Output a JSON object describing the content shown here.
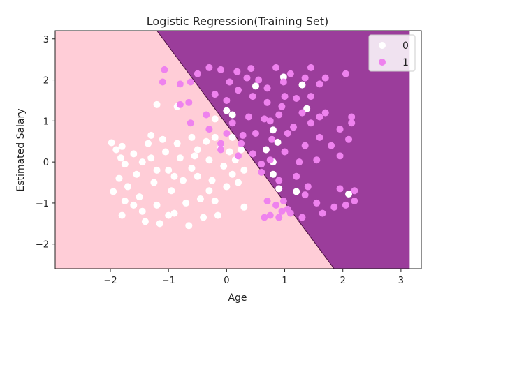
{
  "chart_data": {
    "type": "scatter",
    "title": "Logistic Regression(Training Set)",
    "xlabel": "Age",
    "ylabel": "Estimated Salary",
    "xlim": [
      -2.95,
      3.35
    ],
    "ylim": [
      -2.6,
      3.2
    ],
    "x_ticks": [
      -2,
      -1,
      0,
      1,
      2,
      3
    ],
    "y_ticks": [
      -2,
      -1,
      0,
      1,
      2,
      3
    ],
    "x_tick_labels": [
      "−2",
      "−1",
      "0",
      "1",
      "2",
      "3"
    ],
    "y_tick_labels": [
      "−2",
      "−1",
      "0",
      "1",
      "2",
      "3"
    ],
    "grid": false,
    "legend_placement": "top-right",
    "decision_regions": {
      "colors": {
        "0": "#ffcdd7",
        "1": "#9b3d9b"
      },
      "boundary_line": [
        [
          -1.2,
          3.2
        ],
        [
          1.85,
          -2.6
        ]
      ],
      "colored_x_range": [
        -2.95,
        3.15
      ]
    },
    "series": [
      {
        "name": "0",
        "color": "#ffffff",
        "points": [
          [
            -1.98,
            0.47
          ],
          [
            -1.9,
            0.3
          ],
          [
            -1.82,
            0.1
          ],
          [
            -1.8,
            0.38
          ],
          [
            -1.75,
            -0.05
          ],
          [
            -1.85,
            -0.4
          ],
          [
            -1.95,
            -0.72
          ],
          [
            -1.7,
            -0.6
          ],
          [
            -1.75,
            -0.95
          ],
          [
            -1.8,
            -1.3
          ],
          [
            -1.6,
            0.2
          ],
          [
            -1.55,
            -0.3
          ],
          [
            -1.5,
            -0.85
          ],
          [
            -1.45,
            -1.2
          ],
          [
            -1.4,
            -1.45
          ],
          [
            -1.35,
            0.45
          ],
          [
            -1.3,
            0.1
          ],
          [
            -1.25,
            -0.5
          ],
          [
            -1.2,
            -1.05
          ],
          [
            -1.15,
            -1.5
          ],
          [
            -1.3,
            0.65
          ],
          [
            -1.1,
            0.55
          ],
          [
            -1.05,
            0.25
          ],
          [
            -1.0,
            -0.2
          ],
          [
            -0.95,
            -0.7
          ],
          [
            -0.9,
            -1.25
          ],
          [
            -0.85,
            0.45
          ],
          [
            -0.8,
            0.1
          ],
          [
            -0.75,
            -0.45
          ],
          [
            -0.7,
            -1.0
          ],
          [
            -0.65,
            -1.55
          ],
          [
            -1.2,
            1.4
          ],
          [
            -0.85,
            1.35
          ],
          [
            -0.6,
            0.6
          ],
          [
            -0.55,
            0.15
          ],
          [
            -0.5,
            -0.35
          ],
          [
            -0.45,
            -0.9
          ],
          [
            -0.4,
            -1.35
          ],
          [
            -0.35,
            0.5
          ],
          [
            -0.3,
            0.05
          ],
          [
            -0.25,
            -0.45
          ],
          [
            -0.2,
            -0.95
          ],
          [
            -0.15,
            -1.3
          ],
          [
            -0.1,
            0.35
          ],
          [
            -0.05,
            -0.1
          ],
          [
            0.0,
            -0.6
          ],
          [
            0.05,
            0.25
          ],
          [
            0.1,
            -0.3
          ],
          [
            0.15,
            0.05
          ],
          [
            0.2,
            -0.5
          ],
          [
            -0.2,
            1.05
          ],
          [
            0.0,
            1.25
          ],
          [
            0.25,
            0.3
          ],
          [
            0.3,
            -0.2
          ],
          [
            -1.6,
            -1.05
          ],
          [
            -1.45,
            0.0
          ],
          [
            -1.0,
            -1.3
          ],
          [
            -0.6,
            -0.15
          ],
          [
            -0.3,
            -0.7
          ],
          [
            0.3,
            -1.1
          ],
          [
            -0.9,
            -0.35
          ],
          [
            -0.5,
            0.3
          ],
          [
            -1.2,
            -0.2
          ],
          [
            -0.2,
            0.6
          ],
          [
            0.1,
            0.6
          ],
          [
            0.5,
            1.85
          ],
          [
            0.98,
            2.07
          ],
          [
            1.3,
            1.88
          ],
          [
            1.38,
            1.3
          ],
          [
            0.8,
            0.78
          ],
          [
            0.68,
            0.3
          ],
          [
            0.8,
            0.0
          ],
          [
            0.8,
            -0.3
          ],
          [
            0.9,
            -0.65
          ],
          [
            1.2,
            -0.72
          ],
          [
            2.1,
            -0.78
          ],
          [
            0.88,
            0.48
          ],
          [
            0.1,
            1.15
          ]
        ]
      },
      {
        "name": "1",
        "color": "#ee82ee",
        "points": [
          [
            -1.07,
            2.25
          ],
          [
            -1.1,
            1.95
          ],
          [
            -0.8,
            1.9
          ],
          [
            -0.62,
            1.95
          ],
          [
            -0.5,
            2.15
          ],
          [
            -0.3,
            2.3
          ],
          [
            -0.1,
            2.25
          ],
          [
            0.05,
            1.95
          ],
          [
            0.18,
            2.2
          ],
          [
            0.35,
            2.05
          ],
          [
            0.42,
            2.28
          ],
          [
            0.55,
            2.0
          ],
          [
            0.7,
            1.8
          ],
          [
            0.85,
            2.3
          ],
          [
            0.98,
            1.95
          ],
          [
            1.1,
            2.15
          ],
          [
            1.35,
            2.05
          ],
          [
            1.45,
            2.3
          ],
          [
            1.6,
            1.9
          ],
          [
            1.7,
            2.05
          ],
          [
            2.05,
            2.15
          ],
          [
            -0.2,
            1.65
          ],
          [
            0.0,
            1.5
          ],
          [
            0.2,
            1.75
          ],
          [
            0.45,
            1.6
          ],
          [
            0.7,
            1.45
          ],
          [
            0.95,
            1.35
          ],
          [
            1.2,
            1.55
          ],
          [
            1.45,
            1.6
          ],
          [
            1.7,
            1.2
          ],
          [
            -0.8,
            1.4
          ],
          [
            -0.65,
            1.45
          ],
          [
            -0.35,
            1.15
          ],
          [
            0.1,
            0.95
          ],
          [
            0.38,
            1.1
          ],
          [
            0.65,
            1.05
          ],
          [
            0.9,
            1.15
          ],
          [
            1.15,
            0.85
          ],
          [
            1.45,
            0.95
          ],
          [
            1.6,
            1.1
          ],
          [
            1.95,
            0.8
          ],
          [
            2.15,
            0.95
          ],
          [
            -0.62,
            0.95
          ],
          [
            -0.3,
            0.8
          ],
          [
            0.0,
            0.7
          ],
          [
            0.28,
            0.65
          ],
          [
            0.5,
            0.7
          ],
          [
            0.78,
            0.55
          ],
          [
            1.05,
            0.7
          ],
          [
            1.35,
            0.4
          ],
          [
            1.6,
            0.6
          ],
          [
            2.1,
            0.55
          ],
          [
            -0.1,
            0.3
          ],
          [
            0.2,
            0.15
          ],
          [
            0.45,
            0.2
          ],
          [
            0.75,
            0.05
          ],
          [
            1.0,
            0.25
          ],
          [
            1.25,
            0.0
          ],
          [
            1.55,
            0.05
          ],
          [
            1.95,
            0.15
          ],
          [
            0.6,
            -0.25
          ],
          [
            0.9,
            -0.45
          ],
          [
            1.2,
            -0.35
          ],
          [
            1.4,
            -0.6
          ],
          [
            1.95,
            -0.65
          ],
          [
            2.2,
            -0.7
          ],
          [
            0.7,
            -0.95
          ],
          [
            0.85,
            -1.05
          ],
          [
            0.95,
            -1.2
          ],
          [
            1.05,
            -1.15
          ],
          [
            0.75,
            -1.3
          ],
          [
            0.9,
            -1.35
          ],
          [
            1.1,
            -1.25
          ],
          [
            1.3,
            -1.35
          ],
          [
            1.55,
            -1.0
          ],
          [
            1.85,
            -1.1
          ],
          [
            2.05,
            -1.05
          ],
          [
            2.2,
            -0.95
          ],
          [
            1.65,
            -1.25
          ],
          [
            0.98,
            -0.95
          ],
          [
            0.65,
            -1.35
          ],
          [
            1.35,
            -0.8
          ],
          [
            0.6,
            -0.05
          ],
          [
            -0.1,
            0.45
          ],
          [
            1.8,
            0.4
          ],
          [
            0.25,
            0.45
          ],
          [
            1.0,
            1.6
          ],
          [
            0.75,
            1.0
          ],
          [
            1.3,
            1.2
          ],
          [
            2.15,
            1.1
          ]
        ]
      }
    ]
  }
}
